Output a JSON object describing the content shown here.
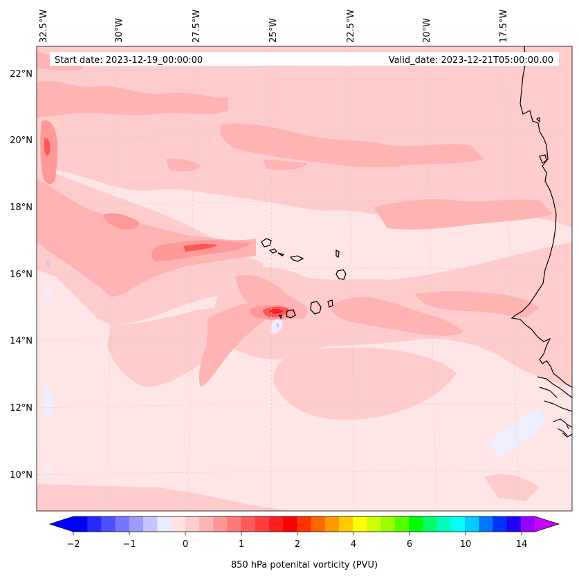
{
  "map": {
    "start_label": "Start date: 2023-12-19_00:00:00",
    "valid_label": "Valid_date: 2023-12-21T05:00:00.00",
    "lon_labels": [
      "32.5°W",
      "30°W",
      "27.5°W",
      "25°W",
      "22.5°W",
      "20°W",
      "17.5°W"
    ],
    "lat_labels": [
      "22°N",
      "20°N",
      "18°N",
      "16°N",
      "14°N",
      "12°N",
      "10°N"
    ]
  },
  "colorbar": {
    "title": "850 hPa potenital vorticity (PVU)",
    "tick_labels": [
      "−2",
      "−1",
      "0",
      "1",
      "2",
      "4",
      "6",
      "10",
      "14"
    ],
    "colors": [
      "#0000ff",
      "#2727ff",
      "#4e4eff",
      "#7575ff",
      "#9c9cff",
      "#c4c4ff",
      "#ebebff",
      "#ffe3e3",
      "#ffcccc",
      "#ffb4b4",
      "#ff9696",
      "#ff7878",
      "#ff5a5a",
      "#ff3c3c",
      "#ff1e1e",
      "#ff0000",
      "#ff3300",
      "#ff6600",
      "#ff9900",
      "#ffcc00",
      "#ffff00",
      "#ccff00",
      "#99ff00",
      "#55ff00",
      "#00ff00",
      "#00ff66",
      "#00ffbb",
      "#00ffff",
      "#00ccff",
      "#0077ff",
      "#0033ff",
      "#2200ff",
      "#9900ff"
    ],
    "low_extend_color": "#0000ff",
    "high_extend_color": "#cc00ff"
  },
  "colors": {
    "background_field": "#ffe6e6",
    "field_light": "#ffcccc",
    "field_mid": "#ffb3b3",
    "field_strong": "#ff9999",
    "field_peak": "#ff5555",
    "negative_field": "#eeeeff",
    "coastline": "#000000"
  }
}
